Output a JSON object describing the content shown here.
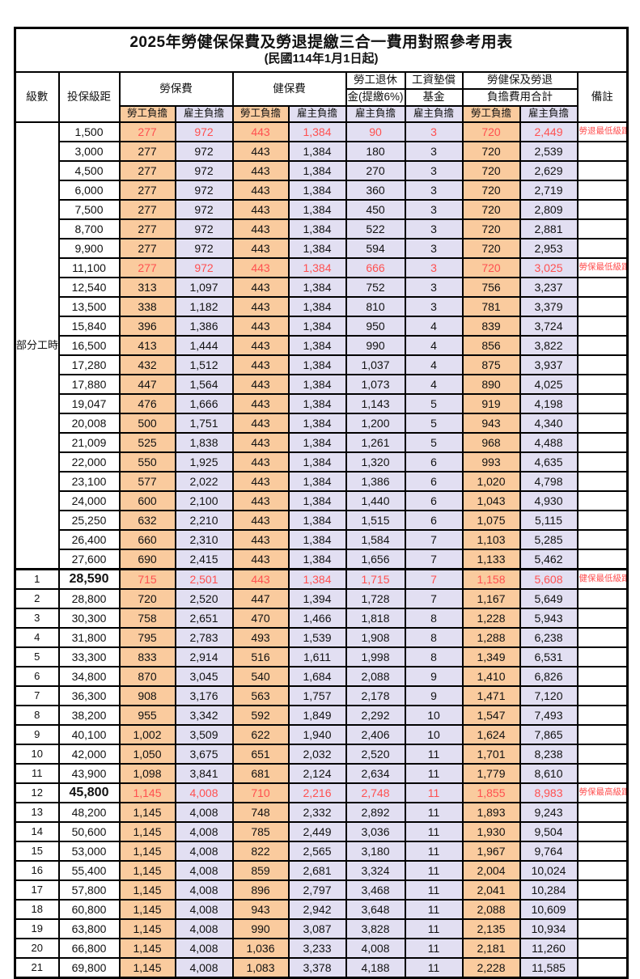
{
  "title": "2025年勞健保保費及勞退提繳三合一費用對照參考用表",
  "subtitle": "(民國114年1月1日起)",
  "colors": {
    "employee_bg": "#FACB9E",
    "employer_bg": "#E2DFF2",
    "highlight_text": "#FF5050",
    "grid": "#000000"
  },
  "header": {
    "level": "級數",
    "salary": "投保級距",
    "labor_ins": "勞保費",
    "health_ins": "健保費",
    "pension_l1": "勞工退休",
    "pension_l2": "金(提繳6%)",
    "wage_fund_l1": "工資墊償",
    "wage_fund_l2": "基金",
    "total_l1": "勞健保及勞退",
    "total_l2": "負擔費用合計",
    "remark": "備註",
    "employee": "勞工負擔",
    "employer": "雇主負擔"
  },
  "part_time_label": "部分工時",
  "rows": [
    {
      "level": "部分工時",
      "rowspan": 23,
      "salary": "1,500",
      "values": [
        "277",
        "972",
        "443",
        "1,384",
        "90",
        "3",
        "720",
        "2,449"
      ],
      "remark": "勞退最低級距",
      "red": true
    },
    {
      "salary": "3,000",
      "values": [
        "277",
        "972",
        "443",
        "1,384",
        "180",
        "3",
        "720",
        "2,539"
      ],
      "remark": ""
    },
    {
      "salary": "4,500",
      "values": [
        "277",
        "972",
        "443",
        "1,384",
        "270",
        "3",
        "720",
        "2,629"
      ],
      "remark": ""
    },
    {
      "salary": "6,000",
      "values": [
        "277",
        "972",
        "443",
        "1,384",
        "360",
        "3",
        "720",
        "2,719"
      ],
      "remark": ""
    },
    {
      "salary": "7,500",
      "values": [
        "277",
        "972",
        "443",
        "1,384",
        "450",
        "3",
        "720",
        "2,809"
      ],
      "remark": ""
    },
    {
      "salary": "8,700",
      "values": [
        "277",
        "972",
        "443",
        "1,384",
        "522",
        "3",
        "720",
        "2,881"
      ],
      "remark": ""
    },
    {
      "salary": "9,900",
      "values": [
        "277",
        "972",
        "443",
        "1,384",
        "594",
        "3",
        "720",
        "2,953"
      ],
      "remark": ""
    },
    {
      "salary": "11,100",
      "values": [
        "277",
        "972",
        "443",
        "1,384",
        "666",
        "3",
        "720",
        "3,025"
      ],
      "remark": "勞保最低級距",
      "red": true
    },
    {
      "salary": "12,540",
      "values": [
        "313",
        "1,097",
        "443",
        "1,384",
        "752",
        "3",
        "756",
        "3,237"
      ],
      "remark": ""
    },
    {
      "salary": "13,500",
      "values": [
        "338",
        "1,182",
        "443",
        "1,384",
        "810",
        "3",
        "781",
        "3,379"
      ],
      "remark": ""
    },
    {
      "salary": "15,840",
      "values": [
        "396",
        "1,386",
        "443",
        "1,384",
        "950",
        "4",
        "839",
        "3,724"
      ],
      "remark": ""
    },
    {
      "salary": "16,500",
      "values": [
        "413",
        "1,444",
        "443",
        "1,384",
        "990",
        "4",
        "856",
        "3,822"
      ],
      "remark": ""
    },
    {
      "salary": "17,280",
      "values": [
        "432",
        "1,512",
        "443",
        "1,384",
        "1,037",
        "4",
        "875",
        "3,937"
      ],
      "remark": ""
    },
    {
      "salary": "17,880",
      "values": [
        "447",
        "1,564",
        "443",
        "1,384",
        "1,073",
        "4",
        "890",
        "4,025"
      ],
      "remark": ""
    },
    {
      "salary": "19,047",
      "values": [
        "476",
        "1,666",
        "443",
        "1,384",
        "1,143",
        "5",
        "919",
        "4,198"
      ],
      "remark": ""
    },
    {
      "salary": "20,008",
      "values": [
        "500",
        "1,751",
        "443",
        "1,384",
        "1,200",
        "5",
        "943",
        "4,340"
      ],
      "remark": ""
    },
    {
      "salary": "21,009",
      "values": [
        "525",
        "1,838",
        "443",
        "1,384",
        "1,261",
        "5",
        "968",
        "4,488"
      ],
      "remark": ""
    },
    {
      "salary": "22,000",
      "values": [
        "550",
        "1,925",
        "443",
        "1,384",
        "1,320",
        "6",
        "993",
        "4,635"
      ],
      "remark": ""
    },
    {
      "salary": "23,100",
      "values": [
        "577",
        "2,022",
        "443",
        "1,384",
        "1,386",
        "6",
        "1,020",
        "4,798"
      ],
      "remark": ""
    },
    {
      "salary": "24,000",
      "values": [
        "600",
        "2,100",
        "443",
        "1,384",
        "1,440",
        "6",
        "1,043",
        "4,930"
      ],
      "remark": ""
    },
    {
      "salary": "25,250",
      "values": [
        "632",
        "2,210",
        "443",
        "1,384",
        "1,515",
        "6",
        "1,075",
        "5,115"
      ],
      "remark": ""
    },
    {
      "salary": "26,400",
      "values": [
        "660",
        "2,310",
        "443",
        "1,384",
        "1,584",
        "7",
        "1,103",
        "5,285"
      ],
      "remark": ""
    },
    {
      "salary": "27,600",
      "values": [
        "690",
        "2,415",
        "443",
        "1,384",
        "1,656",
        "7",
        "1,133",
        "5,462"
      ],
      "remark": ""
    },
    {
      "level": "1",
      "salary": "28,590",
      "bold": true,
      "section": true,
      "values": [
        "715",
        "2,501",
        "443",
        "1,384",
        "1,715",
        "7",
        "1,158",
        "5,608"
      ],
      "remark": "健保最低級距",
      "red": true
    },
    {
      "level": "2",
      "salary": "28,800",
      "values": [
        "720",
        "2,520",
        "447",
        "1,394",
        "1,728",
        "7",
        "1,167",
        "5,649"
      ],
      "remark": ""
    },
    {
      "level": "3",
      "salary": "30,300",
      "values": [
        "758",
        "2,651",
        "470",
        "1,466",
        "1,818",
        "8",
        "1,228",
        "5,943"
      ],
      "remark": ""
    },
    {
      "level": "4",
      "salary": "31,800",
      "values": [
        "795",
        "2,783",
        "493",
        "1,539",
        "1,908",
        "8",
        "1,288",
        "6,238"
      ],
      "remark": ""
    },
    {
      "level": "5",
      "salary": "33,300",
      "values": [
        "833",
        "2,914",
        "516",
        "1,611",
        "1,998",
        "8",
        "1,349",
        "6,531"
      ],
      "remark": ""
    },
    {
      "level": "6",
      "salary": "34,800",
      "values": [
        "870",
        "3,045",
        "540",
        "1,684",
        "2,088",
        "9",
        "1,410",
        "6,826"
      ],
      "remark": ""
    },
    {
      "level": "7",
      "salary": "36,300",
      "values": [
        "908",
        "3,176",
        "563",
        "1,757",
        "2,178",
        "9",
        "1,471",
        "7,120"
      ],
      "remark": ""
    },
    {
      "level": "8",
      "salary": "38,200",
      "values": [
        "955",
        "3,342",
        "592",
        "1,849",
        "2,292",
        "10",
        "1,547",
        "7,493"
      ],
      "remark": ""
    },
    {
      "level": "9",
      "salary": "40,100",
      "values": [
        "1,002",
        "3,509",
        "622",
        "1,940",
        "2,406",
        "10",
        "1,624",
        "7,865"
      ],
      "remark": ""
    },
    {
      "level": "10",
      "salary": "42,000",
      "values": [
        "1,050",
        "3,675",
        "651",
        "2,032",
        "2,520",
        "11",
        "1,701",
        "8,238"
      ],
      "remark": ""
    },
    {
      "level": "11",
      "salary": "43,900",
      "values": [
        "1,098",
        "3,841",
        "681",
        "2,124",
        "2,634",
        "11",
        "1,779",
        "8,610"
      ],
      "remark": ""
    },
    {
      "level": "12",
      "salary": "45,800",
      "bold": true,
      "values": [
        "1,145",
        "4,008",
        "710",
        "2,216",
        "2,748",
        "11",
        "1,855",
        "8,983"
      ],
      "remark": "勞保最高級距",
      "red": true
    },
    {
      "level": "13",
      "salary": "48,200",
      "values": [
        "1,145",
        "4,008",
        "748",
        "2,332",
        "2,892",
        "11",
        "1,893",
        "9,243"
      ],
      "remark": ""
    },
    {
      "level": "14",
      "salary": "50,600",
      "values": [
        "1,145",
        "4,008",
        "785",
        "2,449",
        "3,036",
        "11",
        "1,930",
        "9,504"
      ],
      "remark": ""
    },
    {
      "level": "15",
      "salary": "53,000",
      "values": [
        "1,145",
        "4,008",
        "822",
        "2,565",
        "3,180",
        "11",
        "1,967",
        "9,764"
      ],
      "remark": ""
    },
    {
      "level": "16",
      "salary": "55,400",
      "values": [
        "1,145",
        "4,008",
        "859",
        "2,681",
        "3,324",
        "11",
        "2,004",
        "10,024"
      ],
      "remark": ""
    },
    {
      "level": "17",
      "salary": "57,800",
      "values": [
        "1,145",
        "4,008",
        "896",
        "2,797",
        "3,468",
        "11",
        "2,041",
        "10,284"
      ],
      "remark": ""
    },
    {
      "level": "18",
      "salary": "60,800",
      "values": [
        "1,145",
        "4,008",
        "943",
        "2,942",
        "3,648",
        "11",
        "2,088",
        "10,609"
      ],
      "remark": ""
    },
    {
      "level": "19",
      "salary": "63,800",
      "values": [
        "1,145",
        "4,008",
        "990",
        "3,087",
        "3,828",
        "11",
        "2,135",
        "10,934"
      ],
      "remark": ""
    },
    {
      "level": "20",
      "salary": "66,800",
      "values": [
        "1,145",
        "4,008",
        "1,036",
        "3,233",
        "4,008",
        "11",
        "2,181",
        "11,260"
      ],
      "remark": ""
    },
    {
      "level": "21",
      "salary": "69,800",
      "values": [
        "1,145",
        "4,008",
        "1,083",
        "3,378",
        "4,188",
        "11",
        "2,228",
        "11,585"
      ],
      "remark": ""
    }
  ]
}
